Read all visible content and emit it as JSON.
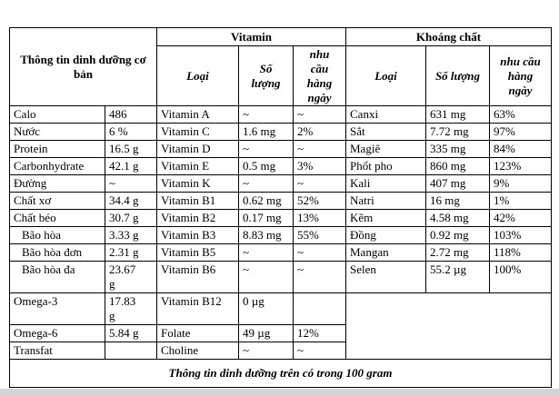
{
  "table": {
    "header": {
      "basic_info_title": "Thông tin dinh dưỡng cơ bản",
      "vitamin_title": "Vitamin",
      "mineral_title": "Khoáng chất",
      "col_type": "Loại",
      "col_amount": "Số lượng",
      "col_daily": "nhu cầu hàng ngày"
    },
    "basic_rows": [
      {
        "label": "Calo",
        "value": "486"
      },
      {
        "label": "Nước",
        "value": "6 %"
      },
      {
        "label": "Protein",
        "value": "16.5 g"
      },
      {
        "label": "Carbonhydrate",
        "value": "42.1 g"
      },
      {
        "label": "Đường",
        "value": "~"
      },
      {
        "label": "Chất xơ",
        "value": "34.4 g"
      },
      {
        "label": "Chất béo",
        "value": "30.7 g"
      },
      {
        "label": "Bão hòa",
        "value": "3.33 g",
        "indent": true
      },
      {
        "label": "Bão hòa đơn",
        "value": "2.31 g",
        "indent": true
      },
      {
        "label": "Bão hòa đa",
        "value": "23.67\ng",
        "indent": true
      },
      {
        "label": "Omega-3",
        "value": "17.83\ng"
      },
      {
        "label": "Omega-6",
        "value": "5.84 g"
      },
      {
        "label": "Transfat",
        "value": ""
      }
    ],
    "vitamin_rows": [
      {
        "name": "Vitamin A",
        "amount": "~",
        "daily": "~"
      },
      {
        "name": "Vitamin C",
        "amount": "1.6 mg",
        "daily": "2%"
      },
      {
        "name": "Vitamin D",
        "amount": "~",
        "daily": "~"
      },
      {
        "name": "Vitamin E",
        "amount": "0.5 mg",
        "daily": "3%"
      },
      {
        "name": "Vitamin K",
        "amount": "~",
        "daily": "~"
      },
      {
        "name": "Vitamin B1",
        "amount": "0.62 mg",
        "daily": "52%"
      },
      {
        "name": "Vitamin B2",
        "amount": "0.17 mg",
        "daily": "13%"
      },
      {
        "name": "Vitamin B3",
        "amount": "8.83 mg",
        "daily": "55%"
      },
      {
        "name": "Vitamin B5",
        "amount": "~",
        "daily": "~"
      },
      {
        "name": "Vitamin B6",
        "amount": "~",
        "daily": "~"
      },
      {
        "name": "Vitamin B12",
        "amount": "0 µg",
        "daily": ""
      },
      {
        "name": "Folate",
        "amount": "49 µg",
        "daily": "12%"
      },
      {
        "name": "Choline",
        "amount": "~",
        "daily": "~"
      }
    ],
    "mineral_rows": [
      {
        "name": "Canxi",
        "amount": "631 mg",
        "daily": "63%"
      },
      {
        "name": "Sắt",
        "amount": "7.72 mg",
        "daily": "97%"
      },
      {
        "name": "Magiê",
        "amount": "335 mg",
        "daily": "84%"
      },
      {
        "name": "Phốt pho",
        "amount": "860 mg",
        "daily": "123%"
      },
      {
        "name": "Kali",
        "amount": "407 mg",
        "daily": "9%"
      },
      {
        "name": "Natri",
        "amount": "16 mg",
        "daily": "1%"
      },
      {
        "name": "Kẽm",
        "amount": "4.58 mg",
        "daily": "42%"
      },
      {
        "name": "Đồng",
        "amount": "0.92 mg",
        "daily": "103%"
      },
      {
        "name": "Mangan",
        "amount": "2.72 mg",
        "daily": "118%"
      },
      {
        "name": "Selen",
        "amount": "55.2 µg",
        "daily": "100%"
      }
    ],
    "footer": "Thông tin dinh dưỡng trên có trong 100 gram"
  }
}
